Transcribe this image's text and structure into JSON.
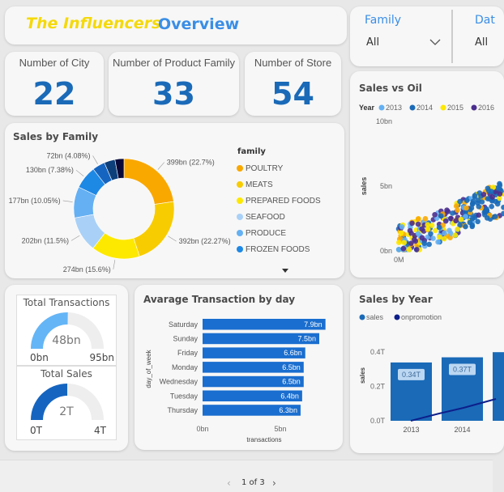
{
  "header": {
    "brand": "The Influencers",
    "title": "Overview"
  },
  "slicers": [
    {
      "label": "Family",
      "value": "All"
    },
    {
      "label": "Dat",
      "value": "All"
    }
  ],
  "kpis": [
    {
      "label": "Number of City",
      "value": "22"
    },
    {
      "label": "Number of Product Family",
      "value": "33"
    },
    {
      "label": "Number of Store",
      "value": "54"
    }
  ],
  "gauges": [
    {
      "title": "Total Transactions",
      "value": "48bn",
      "min": "0bn",
      "max": "95bn",
      "fraction": 0.505,
      "color": "#64b5f6"
    },
    {
      "title": "Total Sales",
      "value": "2T",
      "min": "0T",
      "max": "4T",
      "fraction": 0.5,
      "color": "#1565c0"
    }
  ],
  "colors": {
    "accent": "#1a6ab8",
    "brand": "#f5d90a",
    "title_blue": "#3a8ee6"
  },
  "pager": {
    "text": "1 of 3",
    "prev": "‹",
    "next": "›"
  },
  "chart_data": [
    {
      "type": "pie",
      "title": "Sales by Family",
      "legend_title": "family",
      "legend_position": "right",
      "slices": [
        {
          "name": "POULTRY",
          "label": "399bn (22.7%)",
          "value": 22.7,
          "color": "#f9a800"
        },
        {
          "name": "MEATS",
          "label": "392bn (22.27%)",
          "value": 22.27,
          "color": "#f7cc00"
        },
        {
          "name": "PREPARED FOODS",
          "label": "274bn (15.6%)",
          "value": 15.6,
          "color": "#fde800"
        },
        {
          "name": "SEAFOOD",
          "label": "202bn (11.5%)",
          "value": 11.5,
          "color": "#a9d1f7"
        },
        {
          "name": "PRODUCE",
          "label": "177bn (10.05%)",
          "value": 10.05,
          "color": "#64b0f3"
        },
        {
          "name": "FROZEN FOODS",
          "label": "130bn (7.38%)",
          "value": 7.38,
          "color": "#1e88e5"
        },
        {
          "label": "72bn (4.08%)",
          "value": 4.08,
          "color": "#1565c0"
        },
        {
          "value": 3.5,
          "color": "#0d3f7a"
        },
        {
          "value": 2.9,
          "color": "#0a0a3a"
        }
      ]
    },
    {
      "type": "scatter",
      "title": "Sales vs Oil",
      "legend_title": "Year",
      "xlabel": "",
      "ylabel": "sales",
      "x_ticks": [
        "0M"
      ],
      "y_ticks": [
        "0bn",
        "5bn",
        "10bn"
      ],
      "ylim": [
        0,
        10
      ],
      "series": [
        {
          "name": "2013",
          "color": "#64b0f3"
        },
        {
          "name": "2014",
          "color": "#1a6ab8"
        },
        {
          "name": "2015",
          "color": "#fde800"
        },
        {
          "name": "2016",
          "color": "#4b2f8f"
        },
        {
          "color": "#f9a800"
        }
      ]
    },
    {
      "type": "bar",
      "orientation": "horizontal",
      "title": "Avarage Transaction by day",
      "xlabel": "transactions",
      "ylabel": "day_of_week",
      "x_ticks": [
        "0bn",
        "5bn"
      ],
      "categories": [
        "Saturday",
        "Sunday",
        "Friday",
        "Monday",
        "Wednesday",
        "Tuesday",
        "Thursday"
      ],
      "values": [
        7.9,
        7.5,
        6.6,
        6.5,
        6.5,
        6.4,
        6.3
      ],
      "labels": [
        "7.9bn",
        "7.5bn",
        "6.6bn",
        "6.5bn",
        "6.5bn",
        "6.4bn",
        "6.3bn"
      ]
    },
    {
      "type": "bar",
      "title": "Sales by Year",
      "ylabel": "sales",
      "y_ticks": [
        "0.0T",
        "0.2T",
        "0.4T"
      ],
      "ylim": [
        0,
        0.4
      ],
      "legend": [
        "sales",
        "onpromotion"
      ],
      "categories": [
        "2013",
        "2014"
      ],
      "series": [
        {
          "name": "sales",
          "values": [
            0.34,
            0.37
          ],
          "labels": [
            "0.34T",
            "0.37T"
          ],
          "color": "#1a6ab8"
        },
        {
          "name": "onpromotion",
          "color": "#0d1f8a"
        }
      ]
    }
  ]
}
